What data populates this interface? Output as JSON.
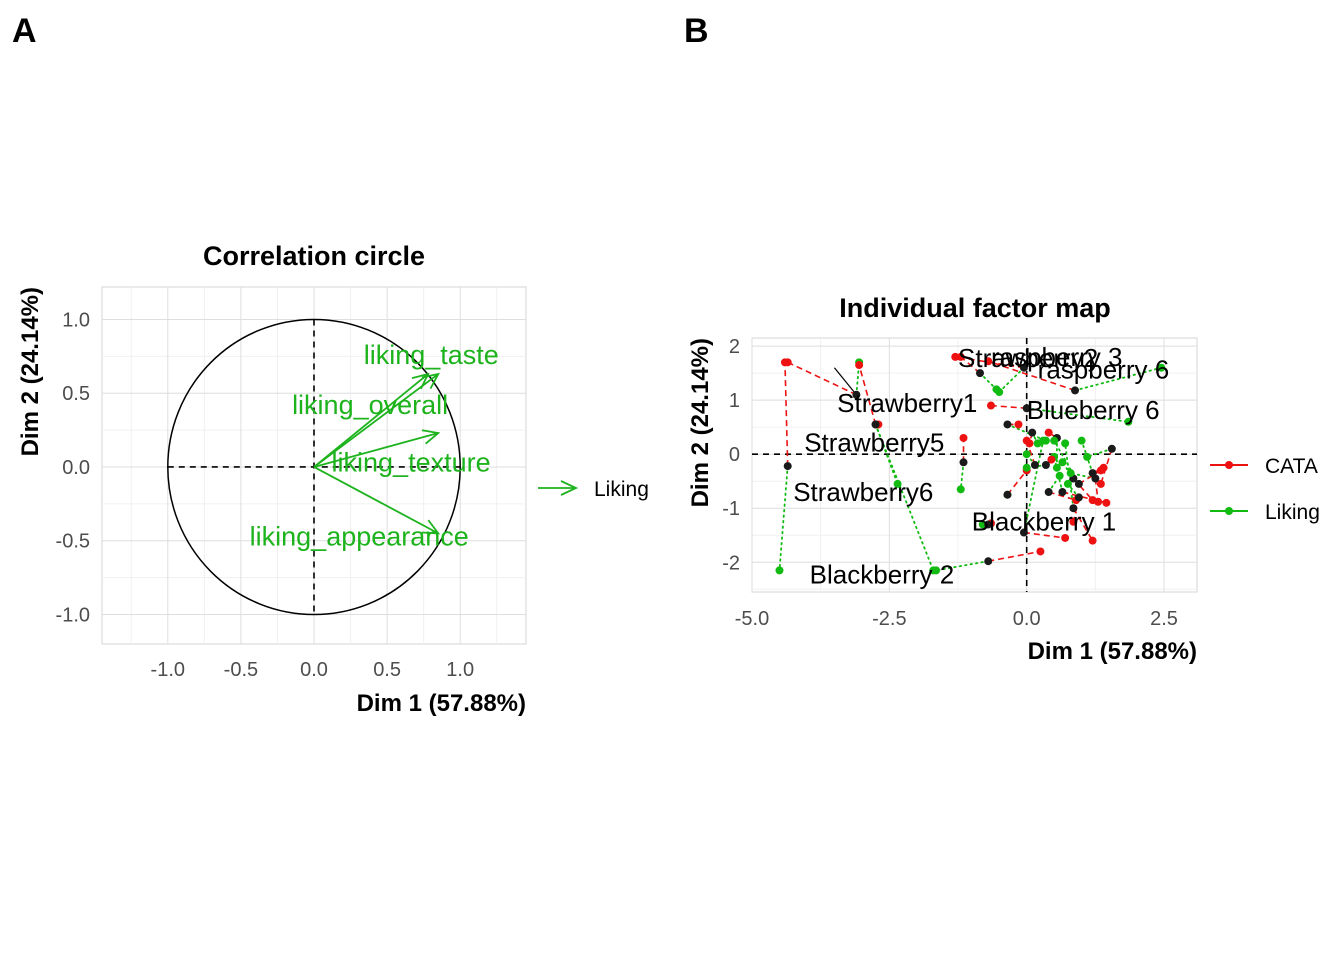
{
  "panel_labels": [
    "A",
    "B"
  ],
  "chart_data": [
    {
      "type": "scatter",
      "subtype": "correlation-circle",
      "title": "Correlation circle",
      "xlabel": "Dim 1 (57.88%)",
      "ylabel": "Dim 2 (24.14%)",
      "xlim": [
        -1.45,
        1.45
      ],
      "ylim": [
        -1.2,
        1.22
      ],
      "xticks": [
        -1.0,
        -0.5,
        0.0,
        0.5,
        1.0
      ],
      "xtick_labels": [
        "-1.0",
        "-0.5",
        "0.0",
        "0.5",
        "1.0"
      ],
      "yticks": [
        -1.0,
        -0.5,
        0.0,
        0.5,
        1.0
      ],
      "ytick_labels": [
        "-1.0",
        "-0.5",
        "0.0",
        "0.5",
        "1.0"
      ],
      "grid": true,
      "circle_radius": 1.0,
      "arrow_color": "#1db31d",
      "vectors": [
        {
          "name": "liking_taste",
          "x": 0.78,
          "y": 0.63
        },
        {
          "name": "liking_overall",
          "x": 0.85,
          "y": 0.63
        },
        {
          "name": "liking_texture",
          "x": 0.85,
          "y": 0.23
        },
        {
          "name": "liking_appearance",
          "x": 0.85,
          "y": -0.45
        }
      ],
      "legend": {
        "position": "right",
        "entries": [
          {
            "name": "Liking",
            "color": "#1db31d"
          }
        ]
      }
    },
    {
      "type": "scatter",
      "subtype": "individual-factor-map",
      "title": "Individual factor map",
      "xlabel": "Dim 1 (57.88%)",
      "ylabel": "Dim 2 (24.14%)",
      "xlim": [
        -5.0,
        3.1
      ],
      "ylim": [
        -2.55,
        2.15
      ],
      "xticks": [
        -5.0,
        -2.5,
        0.0,
        2.5
      ],
      "xtick_labels": [
        "-5.0",
        "-2.5",
        "0.0",
        "2.5"
      ],
      "yticks": [
        -2,
        -1,
        0,
        1,
        2
      ],
      "ytick_labels": [
        "-2",
        "-1",
        "0",
        "1",
        "2"
      ],
      "grid": true,
      "legend": {
        "position": "right",
        "entries": [
          {
            "name": "CATA",
            "color": "#ee1111"
          },
          {
            "name": "Liking",
            "color": "#11bb11"
          }
        ]
      },
      "products": [
        {
          "name": "Strawberry2",
          "x": -3.1,
          "y": 1.1,
          "label": true,
          "cata": [
            -4.35,
            1.7
          ],
          "liking": [
            -3.05,
            1.7
          ]
        },
        {
          "name": "Strawberry1",
          "x": -2.75,
          "y": 0.55,
          "label": true,
          "cata": [
            -3.05,
            1.65
          ],
          "liking": [
            -1.7,
            -2.15
          ]
        },
        {
          "name": "Strawberry5",
          "x": -1.15,
          "y": -0.15,
          "label": true,
          "cata": [
            -1.15,
            0.3
          ],
          "liking": [
            -1.2,
            -0.65
          ]
        },
        {
          "name": "Strawberry6",
          "x": -4.35,
          "y": -0.22,
          "label": true,
          "cata": [
            -4.4,
            1.7
          ],
          "liking": [
            -4.5,
            -2.15
          ]
        },
        {
          "name": "raspberry 3",
          "x": -0.05,
          "y": 1.6,
          "label": true,
          "cata": [
            -1.3,
            1.8
          ],
          "liking": [
            -0.5,
            1.15
          ]
        },
        {
          "name": "raspberry 6",
          "x": 0.88,
          "y": 1.18,
          "label": true,
          "cata": [
            -0.7,
            1.72
          ],
          "liking": [
            2.45,
            1.6
          ]
        },
        {
          "name": "Blueberry 6",
          "x": 0.0,
          "y": 0.85,
          "label": true,
          "cata": [
            -0.65,
            0.9
          ],
          "liking": [
            1.85,
            0.6
          ]
        },
        {
          "name": "Blackberry 1",
          "x": -0.7,
          "y": -1.3,
          "label": true,
          "cata": [
            -0.65,
            -1.28
          ],
          "liking": [
            -0.8,
            -1.3
          ]
        },
        {
          "name": "Blackberry 2",
          "x": -0.7,
          "y": -1.98,
          "label": true,
          "cata": [
            0.25,
            -1.8
          ],
          "liking": [
            -1.65,
            -2.15
          ]
        },
        {
          "name": "",
          "x": -0.85,
          "y": 1.5,
          "label": false,
          "cata": [
            -1.2,
            1.8
          ],
          "liking": [
            -0.55,
            1.2
          ]
        },
        {
          "name": "",
          "x": -2.75,
          "y": 0.55,
          "label": false,
          "cata": [
            -2.7,
            0.55
          ],
          "liking": [
            -2.35,
            -0.55
          ]
        },
        {
          "name": "",
          "x": -0.35,
          "y": 0.55,
          "label": false,
          "cata": [
            -0.15,
            0.55
          ],
          "liking": [
            0.35,
            0.25
          ]
        },
        {
          "name": "",
          "x": 0.55,
          "y": 0.3,
          "label": false,
          "cata": [
            0.4,
            0.4
          ],
          "liking": [
            0.55,
            -0.25
          ]
        },
        {
          "name": "",
          "x": -0.35,
          "y": -0.75,
          "label": false,
          "cata": [
            0.0,
            -0.3
          ],
          "liking": [
            -0.35,
            -0.75
          ]
        },
        {
          "name": "",
          "x": 0.1,
          "y": 0.4,
          "label": false,
          "cata": [
            0.05,
            0.2
          ],
          "liking": [
            0.2,
            0.2
          ]
        },
        {
          "name": "",
          "x": 0.4,
          "y": -0.7,
          "label": false,
          "cata": [
            0.9,
            -0.85
          ],
          "liking": [
            0.6,
            -0.4
          ]
        },
        {
          "name": "",
          "x": 1.2,
          "y": -0.35,
          "label": false,
          "cata": [
            1.4,
            -0.25
          ],
          "liking": [
            1.0,
            0.25
          ]
        },
        {
          "name": "",
          "x": 1.55,
          "y": 0.1,
          "label": false,
          "cata": [
            1.35,
            -0.55
          ],
          "liking": [
            1.1,
            -0.05
          ]
        },
        {
          "name": "",
          "x": 0.85,
          "y": -1.0,
          "label": false,
          "cata": [
            1.2,
            -1.6
          ],
          "liking": [
            0.7,
            0.2
          ]
        },
        {
          "name": "",
          "x": -0.05,
          "y": -1.45,
          "label": false,
          "cata": [
            0.7,
            -1.55
          ],
          "liking": [
            0.3,
            0.25
          ]
        },
        {
          "name": "",
          "x": 0.85,
          "y": -0.45,
          "label": false,
          "cata": [
            1.2,
            -0.85
          ],
          "liking": [
            0.65,
            -0.15
          ]
        },
        {
          "name": "",
          "x": 0.65,
          "y": -0.7,
          "label": false,
          "cata": [
            1.45,
            -0.9
          ],
          "liking": [
            0.5,
            -0.05
          ]
        },
        {
          "name": "",
          "x": 1.25,
          "y": -0.45,
          "label": false,
          "cata": [
            1.3,
            -0.88
          ],
          "liking": [
            0.8,
            -0.35
          ]
        },
        {
          "name": "",
          "x": 0.15,
          "y": -0.2,
          "label": false,
          "cata": [
            0.0,
            0.25
          ],
          "liking": [
            0.0,
            0.0
          ]
        },
        {
          "name": "",
          "x": 0.35,
          "y": -0.2,
          "label": false,
          "cata": [
            0.45,
            -0.1
          ],
          "liking": [
            0.0,
            -0.25
          ]
        },
        {
          "name": "",
          "x": 0.95,
          "y": -0.55,
          "label": false,
          "cata": [
            1.35,
            -0.3
          ],
          "liking": [
            0.5,
            0.25
          ]
        },
        {
          "name": "",
          "x": 0.95,
          "y": -0.8,
          "label": false,
          "cata": [
            0.85,
            -1.25
          ],
          "liking": [
            0.75,
            -0.55
          ]
        }
      ]
    }
  ]
}
